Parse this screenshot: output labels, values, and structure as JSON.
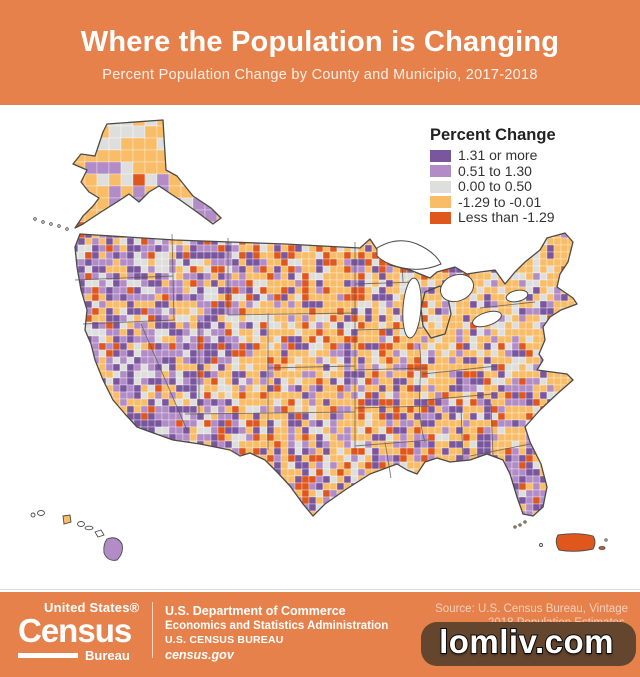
{
  "header": {
    "title": "Where the Population is Changing",
    "subtitle": "Percent Population Change by County and Municipio, 2017-2018",
    "background_color": "#E7814B",
    "text_color": "#FFFFFF"
  },
  "legend": {
    "title": "Percent Change",
    "items": [
      {
        "label": "1.31 or more",
        "color": "#7A569E"
      },
      {
        "label": "0.51 to 1.30",
        "color": "#B18CC6"
      },
      {
        "label": "0.00 to 0.50",
        "color": "#DEDEDD"
      },
      {
        "label": "-1.29 to -0.01",
        "color": "#F9BC67"
      },
      {
        "label": "Less than -1.29",
        "color": "#E0571E"
      }
    ]
  },
  "map": {
    "kind": "county-choropleth",
    "features": [
      "continental-united-states",
      "alaska",
      "hawaii",
      "puerto-rico",
      "great-lakes"
    ],
    "palette": {
      "p1": "#7A569E",
      "p2": "#B18CC6",
      "g": "#DEDEDD",
      "o": "#F9BC67",
      "d": "#E0571E"
    },
    "outline_color": "#4C4A47"
  },
  "footer": {
    "background_color": "#E7814B",
    "logo": {
      "top": "United States®",
      "main": "Census",
      "bottom": "Bureau"
    },
    "dept": [
      "U.S. Department of Commerce",
      "Economics and Statistics Administration",
      "U.S. CENSUS BUREAU",
      "census.gov"
    ],
    "source_line1": "Source: U.S. Census Bureau, Vintage",
    "source_line2": "2018 Population Estimates."
  },
  "watermark": {
    "text": "lomliv.com",
    "background_color": "#64452E"
  }
}
